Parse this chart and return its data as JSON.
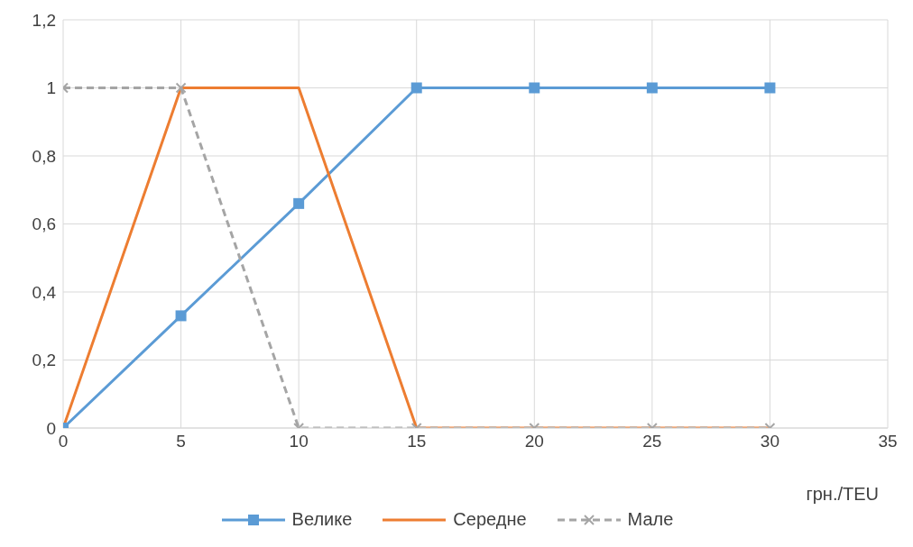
{
  "chart_data": {
    "type": "line",
    "xlabel": "грн./TEU",
    "x": [
      0,
      5,
      10,
      15,
      20,
      25,
      30
    ],
    "series": [
      {
        "name": "Велике",
        "color": "#5b9bd5",
        "values": [
          0,
          0.33,
          0.66,
          1,
          1,
          1,
          1
        ],
        "marker": "square",
        "line_style": "solid"
      },
      {
        "name": "Середне",
        "color": "#ed7d31",
        "values": [
          0,
          1,
          1,
          0,
          0,
          0,
          0
        ],
        "line_style": "solid"
      },
      {
        "name": "Мале",
        "color": "#a5a5a5",
        "values": [
          1,
          1,
          0,
          0,
          0,
          0,
          0
        ],
        "marker": "cross",
        "line_style": "dashed"
      }
    ],
    "xlim": [
      0,
      35
    ],
    "xticks": [
      0,
      5,
      10,
      15,
      20,
      25,
      30,
      35
    ],
    "ylim": [
      0,
      1.2
    ],
    "yticks": [
      0,
      {
        "value": 0.2,
        "label": "0,2"
      },
      {
        "value": 0.4,
        "label": "0,4"
      },
      {
        "value": 0.6,
        "label": "0,6"
      },
      {
        "value": 0.8,
        "label": "0,8"
      },
      1,
      {
        "value": 1.2,
        "label": "1,2"
      }
    ],
    "grid": true,
    "legend": "bottom"
  }
}
